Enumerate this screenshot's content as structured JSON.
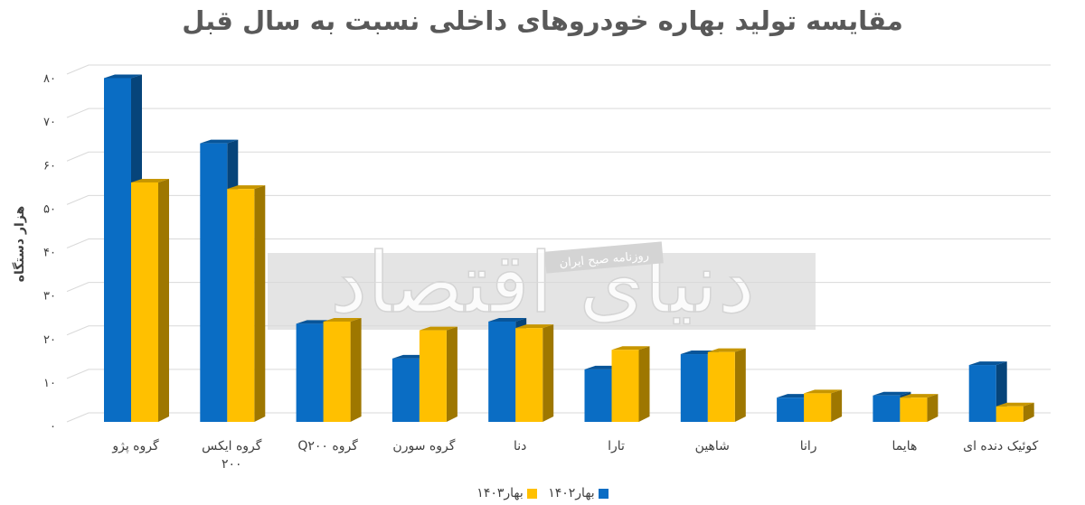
{
  "chart_data": {
    "type": "bar",
    "title": "مقایسه تولید بهاره خودروهای داخلی نسبت به سال قبل",
    "ylabel": "هزار دستگاه",
    "xlabel": "",
    "ylim": [
      0,
      80
    ],
    "yticks": [
      "۰",
      "۱۰",
      "۲۰",
      "۳۰",
      "۴۰",
      "۵۰",
      "۶۰",
      "۷۰",
      "۸۰"
    ],
    "grid": true,
    "legend_position": "bottom",
    "categories": [
      [
        "گروه پژو"
      ],
      [
        "گروه ایکس",
        "۲۰۰"
      ],
      [
        "گروه Q۲۰۰"
      ],
      [
        "گروه سورن"
      ],
      [
        "دنا"
      ],
      [
        "تارا"
      ],
      [
        "شاهین"
      ],
      [
        "رانا"
      ],
      [
        "هایما"
      ],
      [
        "کوئیک دنده ای"
      ]
    ],
    "series": [
      {
        "name": "بهار۱۴۰۲",
        "color": "#0A6DC4",
        "values": [
          77,
          62,
          20.5,
          12.5,
          21,
          10,
          13.5,
          3.5,
          4,
          11
        ]
      },
      {
        "name": "بهار۱۴۰۳",
        "color": "#FFC000",
        "values": [
          53,
          51.5,
          21,
          19,
          19.5,
          14.5,
          14,
          4.5,
          3.5,
          1.5
        ]
      }
    ]
  },
  "watermark": {
    "logo_text": "دنیای اقتصاد",
    "tagline": "روزنامه صبح ایران"
  }
}
